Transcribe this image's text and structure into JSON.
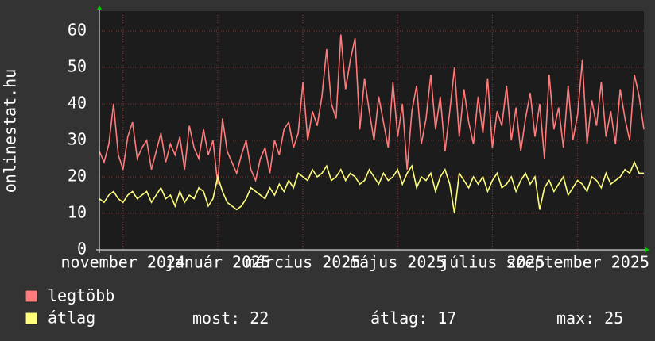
{
  "chart_data": {
    "type": "line",
    "ylabel": "onlinestat.hu",
    "ylim": [
      0,
      65
    ],
    "yticks": [
      0,
      10,
      20,
      30,
      40,
      50,
      60
    ],
    "xlim": [
      0,
      115
    ],
    "xticks": [
      {
        "value": 5,
        "label": "november 2024"
      },
      {
        "value": 25,
        "label": "január 2025"
      },
      {
        "value": 43,
        "label": "március 2025"
      },
      {
        "value": 63,
        "label": "május 2025"
      },
      {
        "value": 83,
        "label": "július 2025"
      },
      {
        "value": 101,
        "label": "szeptember 2025"
      }
    ],
    "grid": true,
    "series": [
      {
        "name": "legtöbb",
        "color": "#ff7b7b",
        "values": [
          27,
          24,
          29,
          40,
          26,
          22,
          31,
          35,
          25,
          28,
          30,
          22,
          27,
          32,
          24,
          29,
          26,
          31,
          22,
          34,
          28,
          25,
          33,
          26,
          30,
          18,
          36,
          27,
          24,
          21,
          26,
          30,
          22,
          19,
          25,
          28,
          21,
          30,
          26,
          33,
          35,
          28,
          32,
          46,
          30,
          38,
          34,
          42,
          55,
          40,
          36,
          59,
          44,
          52,
          58,
          33,
          47,
          38,
          30,
          42,
          35,
          28,
          46,
          31,
          40,
          22,
          38,
          45,
          29,
          36,
          48,
          33,
          42,
          27,
          38,
          50,
          31,
          44,
          35,
          29,
          42,
          32,
          47,
          28,
          38,
          34,
          45,
          30,
          39,
          27,
          36,
          43,
          31,
          40,
          25,
          48,
          33,
          39,
          28,
          45,
          30,
          37,
          52,
          29,
          41,
          34,
          46,
          31,
          38,
          29,
          44,
          36,
          30,
          48,
          42,
          33
        ]
      },
      {
        "name": "átlag",
        "color": "#ffff7b",
        "values": [
          14,
          13,
          15,
          16,
          14,
          13,
          15,
          16,
          14,
          15,
          16,
          13,
          15,
          17,
          14,
          15,
          12,
          16,
          13,
          15,
          14,
          17,
          16,
          12,
          14,
          20,
          16,
          13,
          12,
          11,
          12,
          14,
          17,
          16,
          15,
          14,
          17,
          15,
          18,
          16,
          19,
          17,
          21,
          20,
          19,
          22,
          20,
          21,
          23,
          19,
          20,
          22,
          19,
          21,
          20,
          18,
          19,
          22,
          20,
          18,
          21,
          19,
          20,
          22,
          18,
          21,
          23,
          17,
          20,
          19,
          21,
          16,
          20,
          22,
          18,
          10,
          21,
          19,
          17,
          20,
          18,
          20,
          16,
          19,
          21,
          17,
          18,
          20,
          16,
          19,
          21,
          18,
          20,
          11,
          17,
          19,
          16,
          18,
          20,
          15,
          17,
          19,
          18,
          16,
          20,
          19,
          17,
          21,
          18,
          19,
          20,
          22,
          21,
          24,
          21,
          21
        ]
      }
    ],
    "legend_stats": [
      {
        "label": "most:",
        "value": 22
      },
      {
        "label": "átlag:",
        "value": 17
      },
      {
        "label": "max:",
        "value": 25
      }
    ]
  }
}
